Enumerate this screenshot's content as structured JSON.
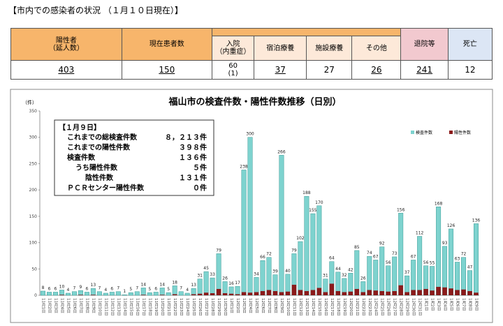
{
  "header": {
    "title": "【市内での感染者の状況 （１月１０日現在）】"
  },
  "table": {
    "headers": [
      "陽性者\n（延人数）",
      "現在患者数",
      "退院等",
      "死亡"
    ],
    "subheaders": [
      "入院\n（内重症）",
      "宿泊療養",
      "施設療養",
      "その他"
    ],
    "values": [
      "403",
      "150",
      "60\n(1)",
      "37",
      "27",
      "26",
      "241",
      "12"
    ]
  },
  "chart_data": {
    "type": "bar",
    "title": "福山市の検査件数・陽性件数推移（日別）",
    "y_label": "（件）",
    "ylim": [
      0,
      350
    ],
    "yticks": [
      0,
      50,
      100,
      150,
      200,
      250,
      300,
      350
    ],
    "grid": false,
    "legend": "upper right",
    "categories": [
      "11月1日",
      "11月2日",
      "11月3日",
      "11月4日",
      "11月5日",
      "11月6日",
      "11月7日",
      "11月8日",
      "11月9日",
      "11月10日",
      "11月11日",
      "11月12日",
      "11月13日",
      "11月14日",
      "11月15日",
      "11月16日",
      "11月17日",
      "11月18日",
      "11月19日",
      "11月20日",
      "11月21日",
      "11月22日",
      "11月23日",
      "11月24日",
      "11月25日",
      "11月26日",
      "11月27日",
      "11月28日",
      "11月29日",
      "11月30日",
      "12月1日",
      "12月2日",
      "12月3日",
      "12月4日",
      "12月5日",
      "12月6日",
      "12月7日",
      "12月8日",
      "12月9日",
      "12月10日",
      "12月11日",
      "12月12日",
      "12月13日",
      "12月14日",
      "12月15日",
      "12月16日",
      "12月17日",
      "12月18日",
      "12月19日",
      "12月20日",
      "12月21日",
      "12月22日",
      "12月23日",
      "12月24日",
      "12月25日",
      "12月26日",
      "12月27日",
      "12月28日",
      "12月29日",
      "12月30日",
      "12月31日",
      "1月1日",
      "1月2日",
      "1月3日",
      "1月4日",
      "1月5日",
      "1月6日",
      "1月7日",
      "1月8日",
      "1月9日"
    ],
    "series": [
      {
        "name": "検査件数",
        "color": "#7ed3cf",
        "values": [
          8,
          6,
          6,
          10,
          4,
          7,
          9,
          6,
          13,
          7,
          4,
          6,
          7,
          1,
          5,
          7,
          14,
          5,
          6,
          14,
          5,
          18,
          7,
          4,
          13,
          31,
          45,
          33,
          79,
          26,
          16,
          17,
          238,
          300,
          34,
          66,
          72,
          39,
          266,
          40,
          79,
          102,
          188,
          155,
          170,
          31,
          64,
          44,
          32,
          42,
          85,
          26,
          74,
          67,
          92,
          56,
          73,
          156,
          37,
          67,
          112,
          56,
          55,
          168,
          93,
          126,
          63,
          72,
          47,
          136
        ]
      },
      {
        "name": "陽性件数",
        "color": "#8b1a1a",
        "values": [
          0,
          0,
          0,
          1,
          0,
          0,
          1,
          0,
          1,
          0,
          0,
          0,
          0,
          0,
          0,
          0,
          1,
          0,
          0,
          1,
          0,
          2,
          0,
          0,
          2,
          3,
          5,
          4,
          12,
          4,
          3,
          2,
          6,
          5,
          6,
          8,
          10,
          8,
          6,
          7,
          20,
          10,
          8,
          10,
          14,
          6,
          22,
          8,
          6,
          7,
          12,
          6,
          10,
          9,
          8,
          7,
          8,
          19,
          6,
          10,
          10,
          12,
          9,
          16,
          15,
          13,
          10,
          11,
          8,
          5
        ]
      }
    ],
    "annotation": {
      "heading": "【１月９日】",
      "lines": [
        {
          "label": "これまでの総検査件数",
          "value": "８，２１３件"
        },
        {
          "label": "これまでの陽性件数",
          "value": "３９８件"
        },
        {
          "label": "検査件数",
          "value": "１３６件"
        },
        {
          "label": "うち陽性件数",
          "value": "５件"
        },
        {
          "label": "陰性件数",
          "value": "１３１件"
        },
        {
          "label": "ＰＣＲセンター陽性件数",
          "value": "０件"
        }
      ]
    }
  }
}
